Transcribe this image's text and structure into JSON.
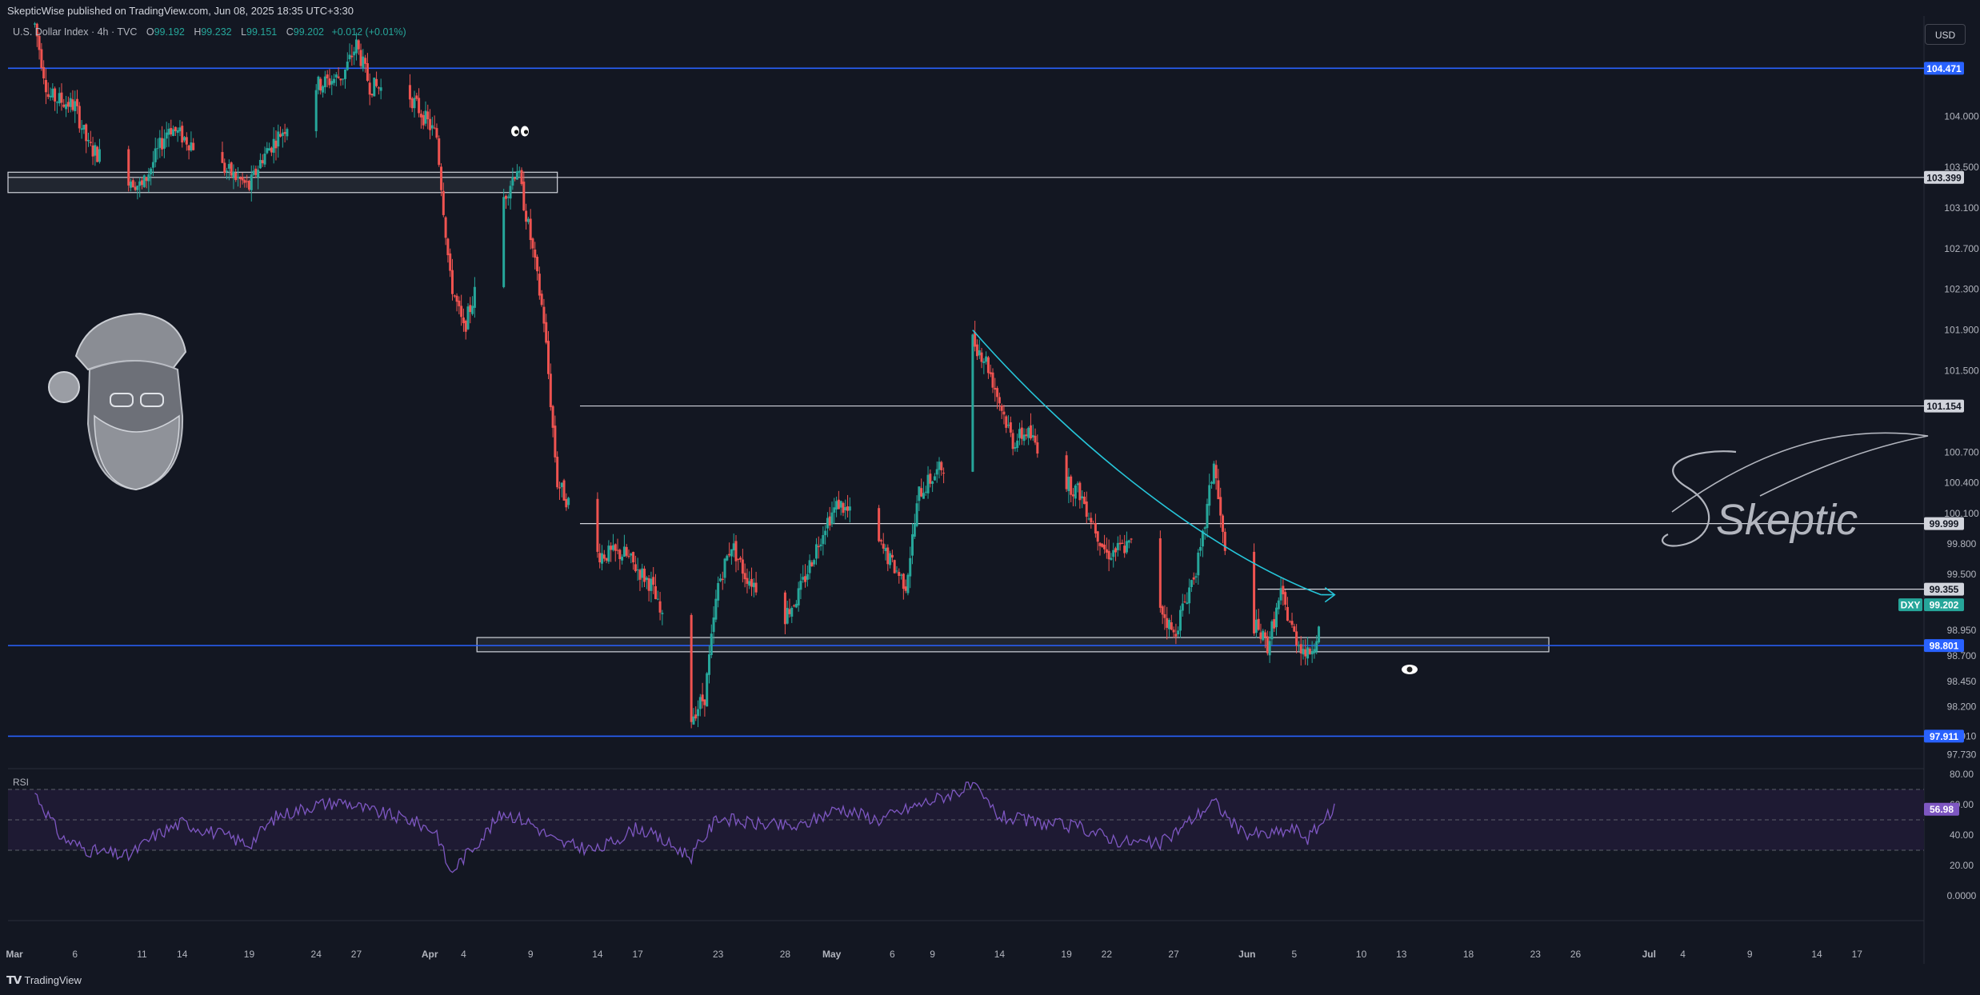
{
  "header": {
    "published": "SkepticWise published on TradingView.com, Jun 08, 2025 18:35 UTC+3:30"
  },
  "legend": {
    "symbol": "U.S. Dollar Index · 4h · TVC",
    "open_label": "O",
    "open": "99.192",
    "high_label": "H",
    "high": "99.232",
    "low_label": "L",
    "low": "99.151",
    "close_label": "C",
    "close": "99.202",
    "change": "+0.012 (+0.01%)"
  },
  "currency_button": "USD",
  "rsi_label": "RSI",
  "footer": {
    "brand": "TradingView"
  },
  "signature": "Skeptic",
  "colors": {
    "background": "#131722",
    "up": "#26a69a",
    "down": "#ef5350",
    "blue_line": "#2962ff",
    "white_line": "#d1d4dc",
    "curve": "#26c6da",
    "rsi": "#7e57c2",
    "rsi_band": "#1e1a33"
  },
  "chart_data": [
    {
      "type": "candlestick",
      "title": "U.S. Dollar Index · 4h · TVC",
      "ylim": [
        97.6,
        105.0
      ],
      "y_ticks": [
        "104.000",
        "103.500",
        "103.100",
        "102.700",
        "102.300",
        "101.900",
        "101.500",
        "100.700",
        "100.400",
        "100.100",
        "99.800",
        "99.500",
        "98.950",
        "98.700",
        "98.450",
        "98.200",
        "97.910",
        "97.730"
      ],
      "x_ticks": [
        "Mar",
        "6",
        "11",
        "14",
        "19",
        "24",
        "27",
        "Apr",
        "4",
        "9",
        "14",
        "17",
        "23",
        "28",
        "May",
        "6",
        "9",
        "14",
        "19",
        "22",
        "27",
        "Jun",
        "5",
        "10",
        "13",
        "18",
        "23",
        "26",
        "Jul",
        "4",
        "9",
        "14",
        "17"
      ],
      "price_path": [
        [
          "2025-03-03",
          104.9
        ],
        [
          "2025-03-04",
          104.2
        ],
        [
          "2025-03-06",
          104.1
        ],
        [
          "2025-03-07",
          103.7
        ],
        [
          "2025-03-11",
          103.3
        ],
        [
          "2025-03-13",
          103.9
        ],
        [
          "2025-03-17",
          103.5
        ],
        [
          "2025-03-19",
          103.3
        ],
        [
          "2025-03-20",
          103.6
        ],
        [
          "2025-03-24",
          104.3
        ],
        [
          "2025-03-26",
          104.4
        ],
        [
          "2025-03-27",
          104.7
        ],
        [
          "2025-03-28",
          104.3
        ],
        [
          "2025-03-31",
          104.2
        ],
        [
          "2025-04-02",
          103.8
        ],
        [
          "2025-04-03",
          102.4
        ],
        [
          "2025-04-04",
          101.9
        ],
        [
          "2025-04-07",
          103.2
        ],
        [
          "2025-04-08",
          103.5
        ],
        [
          "2025-04-09",
          102.8
        ],
        [
          "2025-04-10",
          102.0
        ],
        [
          "2025-04-11",
          100.4
        ],
        [
          "2025-04-14",
          99.7
        ],
        [
          "2025-04-16",
          99.7
        ],
        [
          "2025-04-18",
          99.4
        ],
        [
          "2025-04-21",
          98.1
        ],
        [
          "2025-04-22",
          98.3
        ],
        [
          "2025-04-23",
          99.4
        ],
        [
          "2025-04-24",
          99.8
        ],
        [
          "2025-04-25",
          99.5
        ],
        [
          "2025-04-28",
          99.1
        ],
        [
          "2025-04-29",
          99.3
        ],
        [
          "2025-05-01",
          100.0
        ],
        [
          "2025-05-02",
          100.2
        ],
        [
          "2025-05-05",
          99.8
        ],
        [
          "2025-05-07",
          99.4
        ],
        [
          "2025-05-08",
          100.3
        ],
        [
          "2025-05-10",
          100.6
        ],
        [
          "2025-05-12",
          101.8
        ],
        [
          "2025-05-13",
          101.6
        ],
        [
          "2025-05-15",
          100.8
        ],
        [
          "2025-05-16",
          100.9
        ],
        [
          "2025-05-19",
          100.4
        ],
        [
          "2025-05-20",
          100.3
        ],
        [
          "2025-05-22",
          99.7
        ],
        [
          "2025-05-24",
          99.8
        ],
        [
          "2025-05-26",
          99.2
        ],
        [
          "2025-05-27",
          98.9
        ],
        [
          "2025-05-29",
          99.7
        ],
        [
          "2025-05-30",
          100.6
        ],
        [
          "2025-05-31",
          99.5
        ],
        [
          "2025-06-02",
          99.0
        ],
        [
          "2025-06-03",
          98.8
        ],
        [
          "2025-06-04",
          99.3
        ],
        [
          "2025-06-05",
          98.9
        ],
        [
          "2025-06-06",
          98.7
        ],
        [
          "2025-06-07",
          99.0
        ],
        [
          "2025-06-08",
          99.202
        ]
      ],
      "price_labels": [
        {
          "value": 104.471,
          "label": "104.471",
          "kind": "blue"
        },
        {
          "value": 103.399,
          "label": "103.399",
          "kind": "white"
        },
        {
          "value": 101.154,
          "label": "101.154",
          "kind": "white"
        },
        {
          "value": 99.999,
          "label": "99.999",
          "kind": "white"
        },
        {
          "value": 99.355,
          "label": "99.355",
          "kind": "white"
        },
        {
          "value": 99.202,
          "label": "99.202",
          "kind": "last",
          "tag": "DXY"
        },
        {
          "value": 98.801,
          "label": "98.801",
          "kind": "blue"
        },
        {
          "value": 97.911,
          "label": "97.911",
          "kind": "blue"
        }
      ],
      "horizontal_lines": [
        104.471,
        103.399,
        101.154,
        99.999,
        99.355,
        98.801,
        97.911
      ],
      "zones": [
        {
          "from": "2025-03-01",
          "to": "2025-04-11",
          "low": 103.25,
          "high": 103.45
        },
        {
          "from": "2025-04-05",
          "to": "2025-06-24",
          "low": 98.74,
          "high": 98.88
        }
      ],
      "curve": [
        [
          "2025-05-12",
          101.9
        ],
        [
          "2025-05-20",
          100.7
        ],
        [
          "2025-05-30",
          99.7
        ],
        [
          "2025-06-07",
          99.3
        ]
      ]
    },
    {
      "type": "line",
      "name": "RSI",
      "ylim": [
        0,
        80
      ],
      "y_ticks": [
        "80.00",
        "60.00",
        "40.00",
        "20.00",
        "0.0000"
      ],
      "band": [
        30,
        70
      ],
      "last_value": 56.98,
      "last_label": "56.98",
      "values": [
        [
          "2025-03-03",
          68
        ],
        [
          "2025-03-05",
          38
        ],
        [
          "2025-03-07",
          30
        ],
        [
          "2025-03-10",
          26
        ],
        [
          "2025-03-12",
          40
        ],
        [
          "2025-03-14",
          48
        ],
        [
          "2025-03-17",
          40
        ],
        [
          "2025-03-19",
          34
        ],
        [
          "2025-03-21",
          52
        ],
        [
          "2025-03-24",
          60
        ],
        [
          "2025-03-26",
          62
        ],
        [
          "2025-03-28",
          56
        ],
        [
          "2025-03-31",
          50
        ],
        [
          "2025-04-02",
          42
        ],
        [
          "2025-04-03",
          15
        ],
        [
          "2025-04-07",
          55
        ],
        [
          "2025-04-09",
          48
        ],
        [
          "2025-04-11",
          35
        ],
        [
          "2025-04-14",
          30
        ],
        [
          "2025-04-17",
          45
        ],
        [
          "2025-04-21",
          26
        ],
        [
          "2025-04-23",
          52
        ],
        [
          "2025-04-25",
          48
        ],
        [
          "2025-04-29",
          45
        ],
        [
          "2025-05-02",
          58
        ],
        [
          "2025-05-05",
          50
        ],
        [
          "2025-05-08",
          60
        ],
        [
          "2025-05-12",
          72
        ],
        [
          "2025-05-14",
          52
        ],
        [
          "2025-05-17",
          48
        ],
        [
          "2025-05-20",
          45
        ],
        [
          "2025-05-23",
          36
        ],
        [
          "2025-05-26",
          34
        ],
        [
          "2025-05-28",
          48
        ],
        [
          "2025-05-30",
          62
        ],
        [
          "2025-06-01",
          42
        ],
        [
          "2025-06-03",
          40
        ],
        [
          "2025-06-05",
          44
        ],
        [
          "2025-06-06",
          38
        ],
        [
          "2025-06-08",
          56.98
        ]
      ]
    }
  ]
}
